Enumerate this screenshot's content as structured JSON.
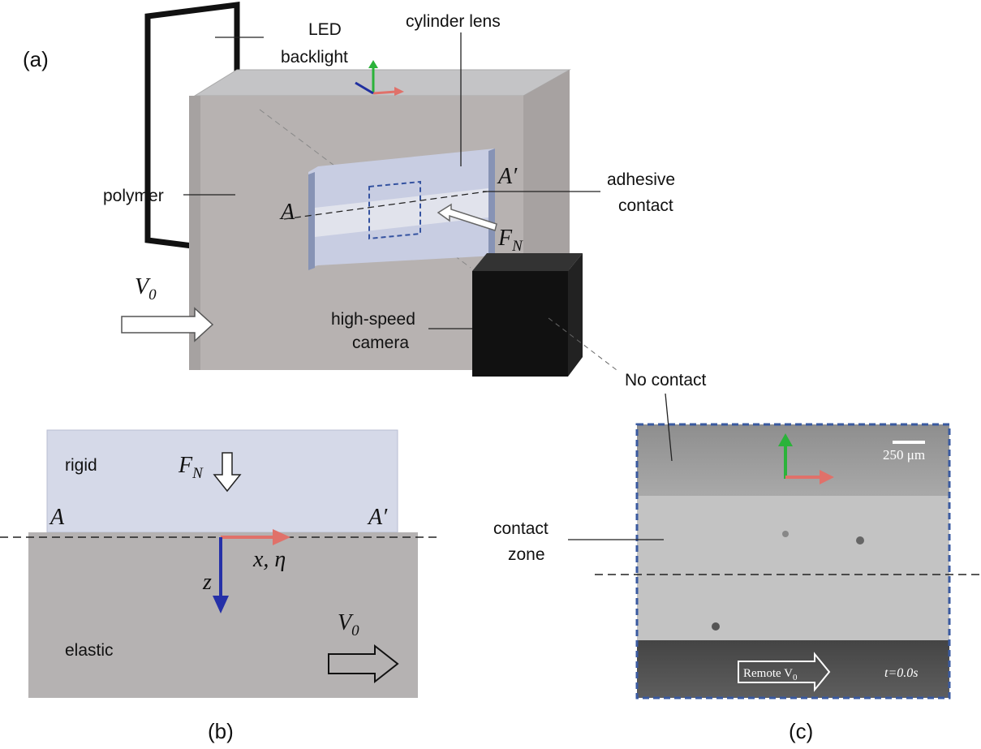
{
  "panel_a": {
    "label": "(a)",
    "led": [
      "LED",
      "backlight"
    ],
    "cylinder_lens": "cylinder lens",
    "polymer": "polymer",
    "point_a": "A",
    "point_a_prime": "A′",
    "adhesive_contact": [
      "adhesive",
      "contact"
    ],
    "force": {
      "symbol": "F",
      "subscript": "N"
    },
    "velocity": {
      "symbol": "V",
      "subscript": "0"
    },
    "camera": [
      "high-speed",
      "camera"
    ],
    "no_contact": "No contact"
  },
  "panel_b": {
    "label": "(b)",
    "rigid": "rigid",
    "force": {
      "symbol": "F",
      "subscript": "N"
    },
    "point_a": "A",
    "point_a_prime": "A′",
    "x_axis": "x, η",
    "z_axis": "z",
    "elastic": "elastic",
    "velocity": {
      "symbol": "V",
      "subscript": "0"
    }
  },
  "panel_c": {
    "label": "(c)",
    "contact_zone": [
      "contact",
      "zone"
    ],
    "scale": "250 μm",
    "remote": {
      "text": "Remote V",
      "subscript": "0"
    },
    "time": "t=0.0s"
  }
}
